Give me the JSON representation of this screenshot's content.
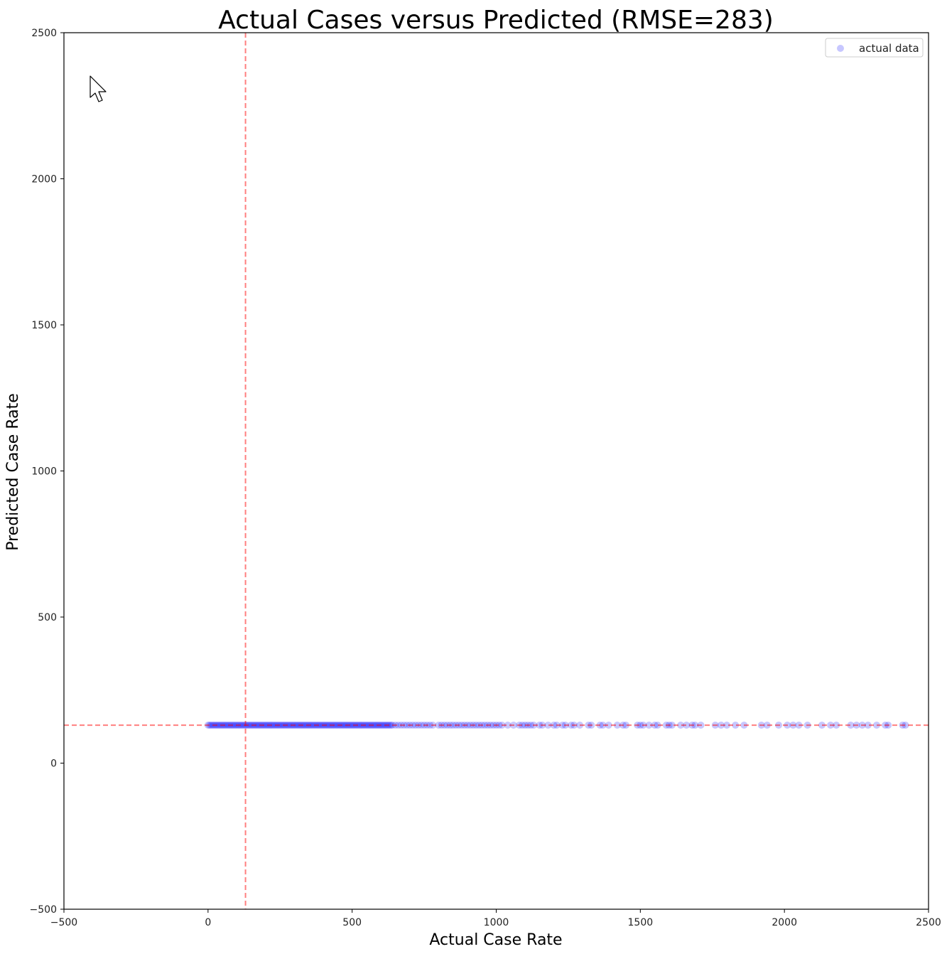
{
  "chart_data": {
    "type": "scatter",
    "title": "Actual Cases versus Predicted (RMSE=283)",
    "xlabel": "Actual Case Rate",
    "ylabel": "Predicted Case Rate",
    "xlim": [
      -500,
      2500
    ],
    "ylim": [
      -500,
      2500
    ],
    "xticks": [
      -500,
      0,
      500,
      1000,
      1500,
      2000,
      2500
    ],
    "yticks": [
      -500,
      0,
      500,
      1000,
      1500,
      2000,
      2500
    ],
    "xtick_labels": [
      "−500",
      "0",
      "500",
      "1000",
      "1500",
      "2000",
      "2500"
    ],
    "ytick_labels": [
      "−500",
      "0",
      "500",
      "1000",
      "1500",
      "2000",
      "2500"
    ],
    "grid": false,
    "legend_position": "top-right",
    "reference_lines": {
      "vertical_x": 130,
      "horizontal_y": 130,
      "color": "#ff0000",
      "style": "dashed"
    },
    "series": [
      {
        "name": "actual data",
        "color": "#0000ff",
        "predicted_value": 130,
        "x": [
          0,
          5,
          10,
          15,
          20,
          25,
          30,
          35,
          40,
          45,
          50,
          55,
          60,
          65,
          70,
          75,
          80,
          85,
          90,
          95,
          100,
          105,
          110,
          115,
          120,
          125,
          130,
          135,
          140,
          145,
          150,
          155,
          160,
          165,
          170,
          175,
          180,
          185,
          190,
          195,
          200,
          205,
          210,
          215,
          220,
          225,
          230,
          235,
          240,
          245,
          250,
          255,
          260,
          265,
          270,
          275,
          280,
          285,
          290,
          295,
          300,
          305,
          310,
          315,
          320,
          325,
          330,
          335,
          340,
          345,
          350,
          355,
          360,
          365,
          370,
          375,
          380,
          385,
          390,
          395,
          400,
          405,
          410,
          415,
          420,
          425,
          430,
          435,
          440,
          445,
          450,
          455,
          460,
          465,
          470,
          475,
          480,
          485,
          490,
          495,
          500,
          505,
          510,
          515,
          520,
          525,
          530,
          535,
          540,
          545,
          550,
          555,
          560,
          565,
          570,
          575,
          580,
          585,
          590,
          595,
          600,
          605,
          610,
          615,
          620,
          625,
          630,
          635,
          640,
          650,
          660,
          670,
          680,
          690,
          700,
          710,
          720,
          730,
          740,
          750,
          760,
          770,
          780,
          800,
          810,
          820,
          830,
          840,
          850,
          860,
          870,
          880,
          890,
          900,
          910,
          920,
          930,
          940,
          950,
          960,
          970,
          980,
          990,
          1000,
          1010,
          1020,
          1040,
          1060,
          1080,
          1090,
          1100,
          1110,
          1120,
          1130,
          1150,
          1160,
          1180,
          1200,
          1210,
          1230,
          1240,
          1260,
          1270,
          1290,
          1320,
          1330,
          1360,
          1370,
          1390,
          1420,
          1440,
          1450,
          1490,
          1500,
          1510,
          1530,
          1550,
          1560,
          1590,
          1600,
          1610,
          1640,
          1660,
          1680,
          1690,
          1710,
          1760,
          1780,
          1800,
          1830,
          1860,
          1920,
          1940,
          1980,
          2010,
          2030,
          2050,
          2080,
          2130,
          2160,
          2180,
          2230,
          2250,
          2270,
          2290,
          2320,
          2350,
          2360,
          2410,
          2420
        ],
        "y_constant": 130
      }
    ]
  }
}
